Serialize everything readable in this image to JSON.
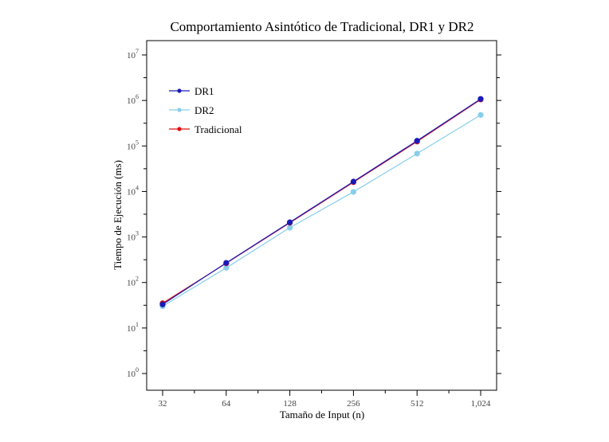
{
  "chart_data": {
    "type": "line",
    "title": "Comportamiento Asintótico de Tradicional, DR1 y DR2",
    "xlabel": "Tamaño de Input (n)",
    "ylabel": "Tiempo de Ejecución (ms)",
    "x_scale": "log2",
    "y_scale": "log10",
    "x": [
      32,
      64,
      128,
      256,
      512,
      1024
    ],
    "x_tick_labels": [
      "32",
      "64",
      "128",
      "256",
      "512",
      "1,024"
    ],
    "y_ticks": [
      {
        "base": "10",
        "exp": "0"
      },
      {
        "base": "10",
        "exp": "1"
      },
      {
        "base": "10",
        "exp": "2"
      },
      {
        "base": "10",
        "exp": "3"
      },
      {
        "base": "10",
        "exp": "4"
      },
      {
        "base": "10",
        "exp": "5"
      },
      {
        "base": "10",
        "exp": "6"
      },
      {
        "base": "10",
        "exp": "7"
      }
    ],
    "ylim": [
      1,
      10000000
    ],
    "grid": false,
    "legend_position": "top-left",
    "series": [
      {
        "name": "DR1",
        "color": "#1a1ab8",
        "values": [
          33,
          270,
          2100,
          16500,
          130000,
          1080000
        ]
      },
      {
        "name": "DR2",
        "color": "#87ceeb",
        "values": [
          30,
          210,
          1600,
          9800,
          68000,
          480000
        ]
      },
      {
        "name": "Tradicional",
        "color": "#e01010",
        "values": [
          35,
          265,
          2050,
          16000,
          125000,
          1050000
        ]
      }
    ]
  }
}
